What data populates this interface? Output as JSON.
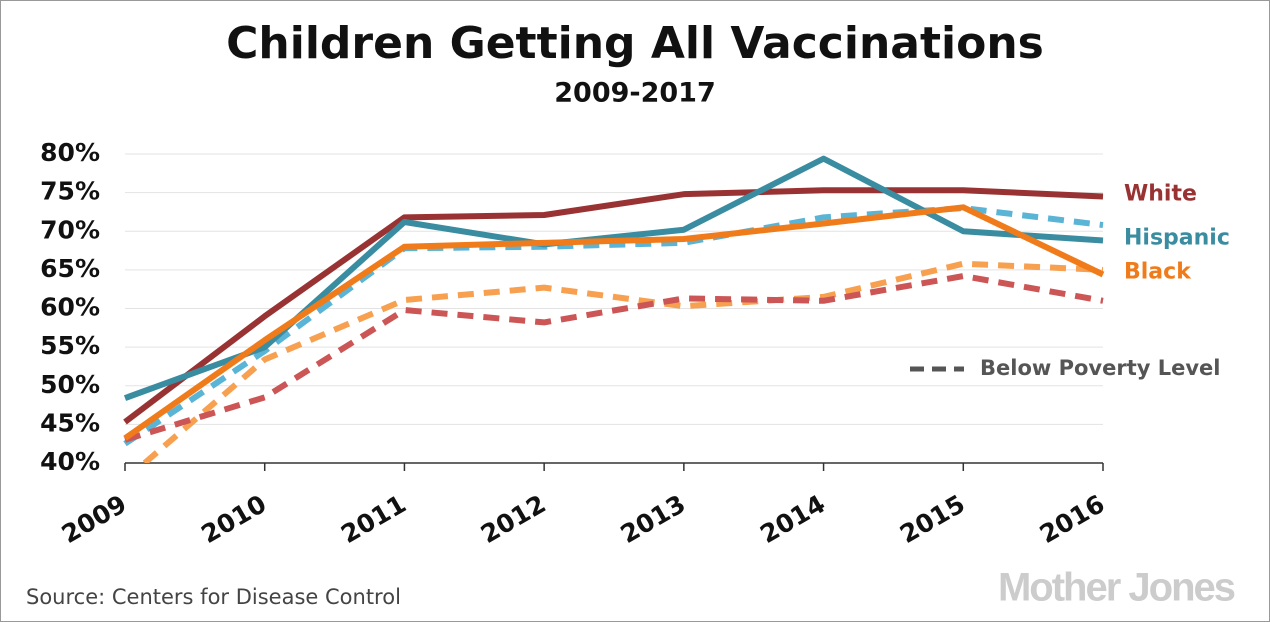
{
  "chart_data": {
    "type": "line",
    "title": "Children Getting All Vaccinations",
    "subtitle": "2009-2017",
    "x": [
      2009,
      2010,
      2011,
      2012,
      2013,
      2014,
      2015,
      2016
    ],
    "xlim": [
      2009,
      2016
    ],
    "xticks": [
      2009,
      2010,
      2011,
      2012,
      2013,
      2014,
      2015,
      2016
    ],
    "ylim": [
      40,
      80
    ],
    "yticks": [
      {
        "value": 40,
        "label": "40%"
      },
      {
        "value": 45,
        "label": "45%"
      },
      {
        "value": 50,
        "label": "50%"
      },
      {
        "value": 55,
        "label": "55%"
      },
      {
        "value": 60,
        "label": "60%"
      },
      {
        "value": 65,
        "label": "65%"
      },
      {
        "value": 70,
        "label": "70%"
      },
      {
        "value": 75,
        "label": "75%"
      },
      {
        "value": 80,
        "label": "80%"
      }
    ],
    "grid": true,
    "series": [
      {
        "name": "White",
        "color": "#993333",
        "values": [
          45.3,
          59,
          71.8,
          72.1,
          74.8,
          75.3,
          75.3,
          74.5
        ]
      },
      {
        "name": "Hispanic",
        "color": "#3a8ca0",
        "values": [
          48.4,
          55,
          71.2,
          68.3,
          70.2,
          79.4,
          70,
          68.8
        ]
      },
      {
        "name": "Black",
        "color": "#f07b1a",
        "values": [
          43.2,
          55.9,
          68,
          68.5,
          69,
          71,
          73.1,
          64.4
        ]
      },
      {
        "color": "#5ab4d6",
        "dashed": true,
        "values": [
          42.5,
          54.5,
          67.8,
          68,
          68.5,
          71.8,
          73,
          70.8
        ]
      },
      {
        "color": "#f7a050",
        "dashed": true,
        "values": [
          37.8,
          53.4,
          61.1,
          62.7,
          60.3,
          61.5,
          65.8,
          65
        ]
      },
      {
        "color": "#cc5555",
        "dashed": true,
        "values": [
          43,
          48.5,
          59.8,
          58.2,
          61.3,
          61,
          64.2,
          61
        ]
      }
    ],
    "poverty_legend": "Below Poverty Level",
    "source": "Source: Centers for Disease Control",
    "logo": "Mother Jones"
  }
}
